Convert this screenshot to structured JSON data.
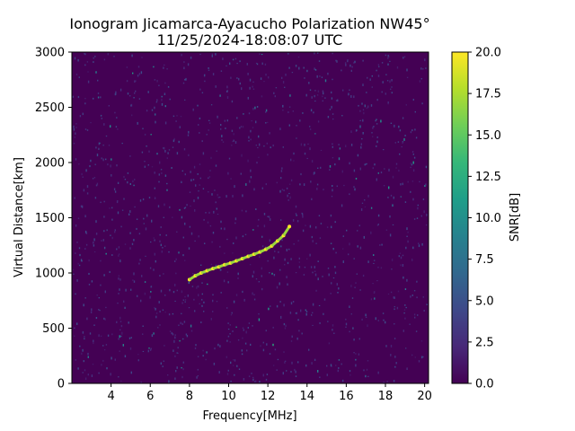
{
  "chart_data": {
    "type": "heatmap",
    "title_line1": "Ionogram Jicamarca-Ayacucho Polarization NW45°",
    "title_line2": "11/25/2024-18:08:07 UTC",
    "xlabel": "Frequency[MHz]",
    "ylabel": "Virtual Distance[km]",
    "xlim": [
      2.0,
      20.2
    ],
    "ylim": [
      0,
      3000
    ],
    "xticks": [
      4,
      6,
      8,
      10,
      12,
      14,
      16,
      18,
      20
    ],
    "yticks": [
      0,
      500,
      1000,
      1500,
      2000,
      2500,
      3000
    ],
    "colorbar": {
      "label": "SNR[dB]",
      "min": 0.0,
      "max": 20.0,
      "ticks": [
        "0.0",
        "2.5",
        "5.0",
        "7.5",
        "10.0",
        "12.5",
        "15.0",
        "17.5",
        "20.0"
      ],
      "colormap": "viridis"
    },
    "background_level_db": 0,
    "noise_level_db": 4,
    "trace": {
      "name": "",
      "snr_db": 20,
      "points": [
        [
          8.0,
          940
        ],
        [
          8.3,
          975
        ],
        [
          8.6,
          1000
        ],
        [
          8.9,
          1020
        ],
        [
          9.2,
          1040
        ],
        [
          9.5,
          1055
        ],
        [
          9.8,
          1075
        ],
        [
          10.1,
          1090
        ],
        [
          10.4,
          1110
        ],
        [
          10.7,
          1130
        ],
        [
          11.0,
          1150
        ],
        [
          11.3,
          1170
        ],
        [
          11.6,
          1190
        ],
        [
          11.9,
          1215
        ],
        [
          12.2,
          1245
        ],
        [
          12.5,
          1290
        ],
        [
          12.8,
          1340
        ],
        [
          13.1,
          1420
        ]
      ]
    }
  }
}
